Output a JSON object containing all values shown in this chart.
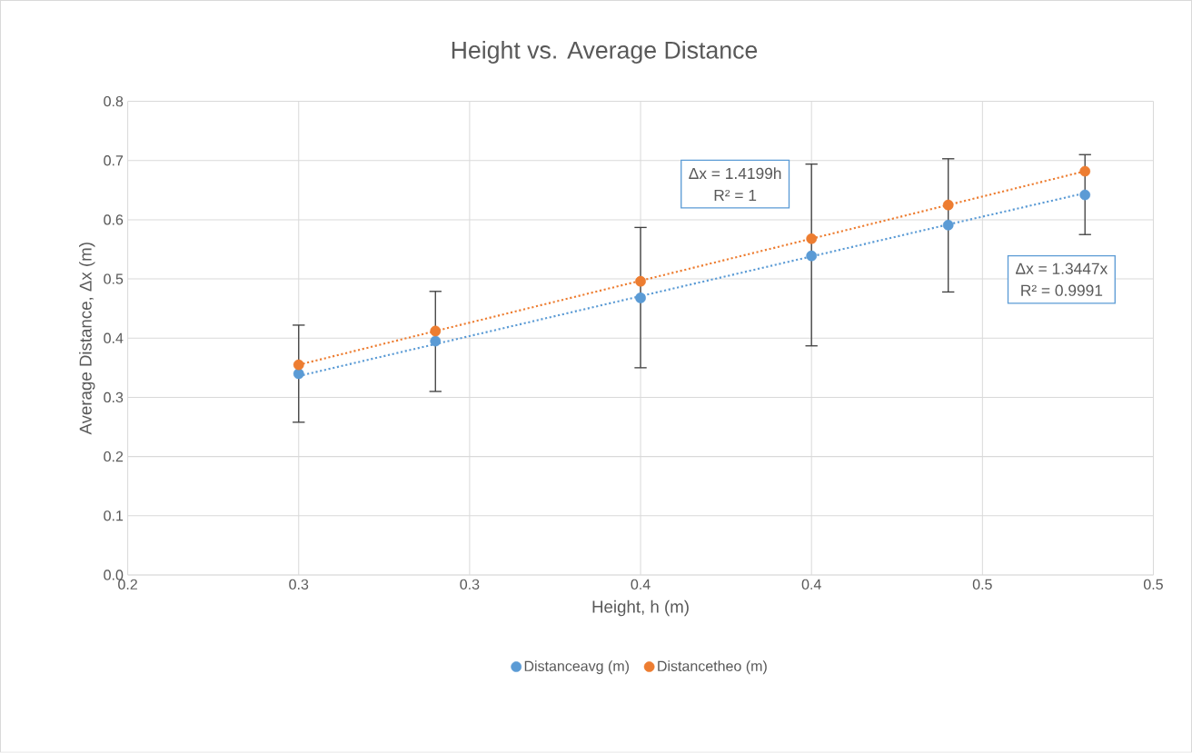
{
  "chart_data": {
    "type": "scatter",
    "title": "Height vs. Average Distance",
    "xlabel": "Height, h (m)",
    "ylabel": "Average Distance, Δx (m)",
    "xlim": [
      0.2,
      0.5
    ],
    "ylim": [
      0,
      0.8
    ],
    "xticks": [
      0.2,
      {
        "value": 0.25,
        "label": "0.3"
      },
      0.3,
      {
        "value": 0.35,
        "label": "0.4"
      },
      0.4,
      {
        "value": 0.45,
        "label": "0.5"
      },
      0.5
    ],
    "yticks": [
      {
        "value": 0,
        "label": "0.0"
      },
      0.1,
      0.2,
      0.3,
      0.4,
      0.5,
      0.6,
      0.7,
      0.8
    ],
    "grid": true,
    "legend": "bottom",
    "marker": "circle",
    "x": [
      0.25,
      0.29,
      0.35,
      0.4,
      0.44,
      0.48
    ],
    "series": [
      {
        "name": "Distanceavg (m)",
        "color": "#5b9bd5",
        "values": [
          0.34,
          0.395,
          0.468,
          0.539,
          0.591,
          0.642
        ],
        "errors": [
          [
            0.258,
            0.422
          ],
          [
            0.31,
            0.479
          ],
          [
            0.35,
            0.587
          ],
          [
            0.387,
            0.694
          ],
          [
            0.478,
            0.703
          ],
          [
            0.575,
            0.71
          ]
        ]
      },
      {
        "name": "Distancetheo (m)",
        "color": "#ed7d31",
        "values": [
          0.355,
          0.412,
          0.496,
          0.568,
          0.625,
          0.682
        ]
      },
      {
        "type": "line",
        "color": "#5b9bd5",
        "line_style": "dotted",
        "marker": "none",
        "values": [
          0.336,
          0.39,
          0.471,
          0.538,
          0.592,
          0.645
        ]
      },
      {
        "type": "line",
        "color": "#ed7d31",
        "line_style": "dotted",
        "marker": "none",
        "values": [
          0.355,
          0.412,
          0.497,
          0.568,
          0.625,
          0.682
        ]
      }
    ],
    "annotations": [
      "Δx = 1.4199h",
      "R² = 1",
      "Δx = 1.3447x",
      "R² = 0.9991"
    ]
  }
}
